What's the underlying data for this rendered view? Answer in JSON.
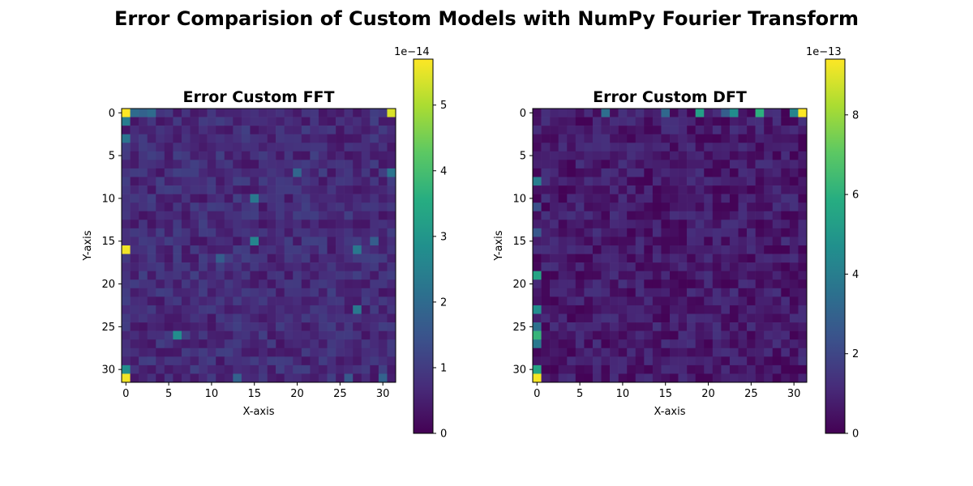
{
  "figure": {
    "suptitle": "Error Comparision of Custom Models with NumPy Fourier Transform"
  },
  "chart_data": [
    {
      "type": "heatmap",
      "title": "Error Custom FFT",
      "xlabel": "X-axis",
      "ylabel": "Y-axis",
      "grid_size": 32,
      "xticks": [
        0,
        5,
        10,
        15,
        20,
        25,
        30
      ],
      "yticks": [
        0,
        5,
        10,
        15,
        20,
        25,
        30
      ],
      "colormap": "viridis",
      "colorbar": {
        "offset_text": "1e−14",
        "vmin": 0,
        "vmax": 5.7,
        "ticks": [
          0,
          1,
          2,
          3,
          4,
          5
        ]
      },
      "base_level": 0.7,
      "background_variation": 0.4,
      "hot_cells": [
        {
          "row": 0,
          "col": 0,
          "value": 5.7
        },
        {
          "row": 0,
          "col": 31,
          "value": 5.4
        },
        {
          "row": 16,
          "col": 0,
          "value": 5.6
        },
        {
          "row": 31,
          "col": 0,
          "value": 5.6
        },
        {
          "row": 0,
          "col": 1,
          "value": 2.0
        },
        {
          "row": 0,
          "col": 2,
          "value": 1.8
        },
        {
          "row": 0,
          "col": 3,
          "value": 2.0
        },
        {
          "row": 1,
          "col": 0,
          "value": 2.4
        },
        {
          "row": 3,
          "col": 0,
          "value": 2.2
        },
        {
          "row": 15,
          "col": 15,
          "value": 2.6
        },
        {
          "row": 10,
          "col": 15,
          "value": 2.3
        },
        {
          "row": 26,
          "col": 6,
          "value": 2.8
        },
        {
          "row": 30,
          "col": 0,
          "value": 2.8
        },
        {
          "row": 7,
          "col": 31,
          "value": 2.2
        },
        {
          "row": 16,
          "col": 27,
          "value": 2.3
        },
        {
          "row": 23,
          "col": 27,
          "value": 2.3
        },
        {
          "row": 7,
          "col": 20,
          "value": 1.9
        },
        {
          "row": 31,
          "col": 13,
          "value": 1.8
        },
        {
          "row": 31,
          "col": 30,
          "value": 1.8
        },
        {
          "row": 31,
          "col": 26,
          "value": 1.6
        },
        {
          "row": 15,
          "col": 29,
          "value": 1.7
        },
        {
          "row": 17,
          "col": 11,
          "value": 1.7
        }
      ]
    },
    {
      "type": "heatmap",
      "title": "Error Custom DFT",
      "xlabel": "X-axis",
      "ylabel": "Y-axis",
      "grid_size": 32,
      "xticks": [
        0,
        5,
        10,
        15,
        20,
        25,
        30
      ],
      "yticks": [
        0,
        5,
        10,
        15,
        20,
        25,
        30
      ],
      "colormap": "viridis",
      "colorbar": {
        "offset_text": "1e−13",
        "vmin": 0,
        "vmax": 9.4,
        "ticks": [
          0,
          2,
          4,
          6,
          8
        ]
      },
      "base_level": 0.7,
      "background_variation": 0.7,
      "hot_cells": [
        {
          "row": 0,
          "col": 31,
          "value": 9.4
        },
        {
          "row": 31,
          "col": 0,
          "value": 9.3
        },
        {
          "row": 0,
          "col": 26,
          "value": 6.0
        },
        {
          "row": 0,
          "col": 19,
          "value": 5.3
        },
        {
          "row": 0,
          "col": 23,
          "value": 4.6
        },
        {
          "row": 0,
          "col": 30,
          "value": 4.3
        },
        {
          "row": 0,
          "col": 8,
          "value": 3.4
        },
        {
          "row": 0,
          "col": 15,
          "value": 3.2
        },
        {
          "row": 0,
          "col": 22,
          "value": 2.8
        },
        {
          "row": 19,
          "col": 0,
          "value": 5.5
        },
        {
          "row": 26,
          "col": 0,
          "value": 6.2
        },
        {
          "row": 30,
          "col": 0,
          "value": 5.5
        },
        {
          "row": 23,
          "col": 0,
          "value": 4.6
        },
        {
          "row": 8,
          "col": 0,
          "value": 4.0
        },
        {
          "row": 27,
          "col": 0,
          "value": 3.8
        },
        {
          "row": 25,
          "col": 0,
          "value": 3.5
        },
        {
          "row": 14,
          "col": 0,
          "value": 2.6
        },
        {
          "row": 11,
          "col": 0,
          "value": 2.3
        }
      ]
    }
  ]
}
